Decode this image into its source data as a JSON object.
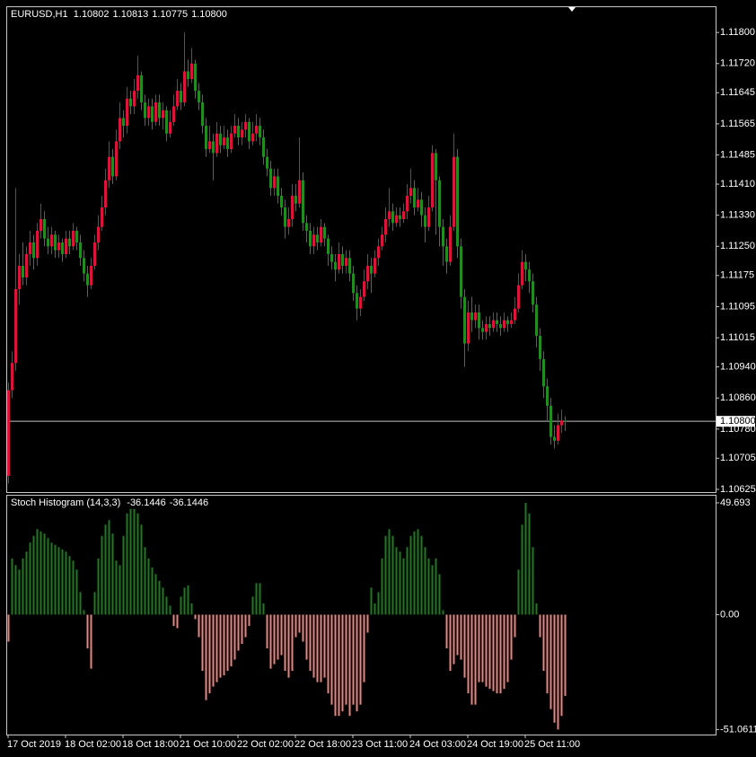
{
  "chart_data": [
    {
      "type": "candlestick",
      "title": "EURUSD,H1",
      "title_values": [
        "1.10802",
        "1.10813",
        "1.10775",
        "1.10800"
      ],
      "up_color": "#dc143c",
      "down_color": "#228b22",
      "ylim": [
        1.10618,
        1.11865
      ],
      "yticks": [
        {
          "value": 1.118,
          "label": "1.11800"
        },
        {
          "value": 1.1172,
          "label": "1.11720"
        },
        {
          "value": 1.11645,
          "label": "1.11645"
        },
        {
          "value": 1.11565,
          "label": "1.11565"
        },
        {
          "value": 1.11485,
          "label": "1.11485"
        },
        {
          "value": 1.1141,
          "label": "1.11410"
        },
        {
          "value": 1.1133,
          "label": "1.11330"
        },
        {
          "value": 1.1125,
          "label": "1.11250"
        },
        {
          "value": 1.11175,
          "label": "1.11175"
        },
        {
          "value": 1.11095,
          "label": "1.11095"
        },
        {
          "value": 1.11015,
          "label": "1.11015"
        },
        {
          "value": 1.1094,
          "label": "1.10940"
        },
        {
          "value": 1.1086,
          "label": "1.10860"
        },
        {
          "value": 1.1078,
          "label": "1.10780"
        },
        {
          "value": 1.10705,
          "label": "1.10705"
        },
        {
          "value": 1.10625,
          "label": "1.10625"
        }
      ],
      "price_line": {
        "value": 1.108,
        "label": "1.10800"
      },
      "open": [
        1.1066,
        1.1088,
        1.1095,
        1.1114,
        1.112,
        1.1117,
        1.1123,
        1.1126,
        1.1122,
        1.1129,
        1.1132,
        1.1127,
        1.1125,
        1.1128,
        1.1124,
        1.1126,
        1.1123,
        1.1127,
        1.1125,
        1.1129,
        1.1126,
        1.1122,
        1.1118,
        1.1115,
        1.112,
        1.1126,
        1.113,
        1.1135,
        1.1142,
        1.1148,
        1.1143,
        1.1152,
        1.1158,
        1.1156,
        1.1163,
        1.1161,
        1.1165,
        1.1169,
        1.1162,
        1.1158,
        1.1161,
        1.1157,
        1.1162,
        1.1158,
        1.116,
        1.1154,
        1.1157,
        1.1161,
        1.1165,
        1.1162,
        1.117,
        1.1168,
        1.1172,
        1.1165,
        1.1162,
        1.1156,
        1.115,
        1.1152,
        1.1149,
        1.1154,
        1.1151,
        1.1153,
        1.115,
        1.1154,
        1.1156,
        1.1153,
        1.1155,
        1.1157,
        1.1152,
        1.1154,
        1.1156,
        1.1153,
        1.1148,
        1.1145,
        1.114,
        1.1143,
        1.1138,
        1.1135,
        1.113,
        1.1132,
        1.1138,
        1.1136,
        1.1142,
        1.1131,
        1.1129,
        1.1125,
        1.1128,
        1.1126,
        1.113,
        1.1127,
        1.1123,
        1.1121,
        1.1119,
        1.1123,
        1.112,
        1.1122,
        1.1118,
        1.1113,
        1.1109,
        1.1112,
        1.1116,
        1.112,
        1.1118,
        1.1122,
        1.1125,
        1.1128,
        1.1132,
        1.1134,
        1.1131,
        1.1133,
        1.1132,
        1.1134,
        1.1138,
        1.114,
        1.1135,
        1.1137,
        1.1133,
        1.113,
        1.1135,
        1.1149,
        1.1142,
        1.113,
        1.1125,
        1.1121,
        1.113,
        1.1148,
        1.1125,
        1.1112,
        1.11,
        1.1108,
        1.1106,
        1.1108,
        1.1104,
        1.1103,
        1.1105,
        1.1104,
        1.1106,
        1.1105,
        1.1104,
        1.1106,
        1.1105,
        1.1106,
        1.1109,
        1.1115,
        1.1121,
        1.1119,
        1.1116,
        1.111,
        1.1102,
        1.1096,
        1.1089,
        1.1084,
        1.1076,
        1.1075,
        1.1079,
        1.10802
      ],
      "high": [
        1.109,
        1.1098,
        1.114,
        1.1123,
        1.1126,
        1.1125,
        1.1129,
        1.1128,
        1.1131,
        1.1136,
        1.1134,
        1.113,
        1.113,
        1.1129,
        1.1128,
        1.1127,
        1.1129,
        1.1129,
        1.1131,
        1.113,
        1.1128,
        1.1124,
        1.112,
        1.1122,
        1.1128,
        1.1133,
        1.1138,
        1.1145,
        1.1152,
        1.115,
        1.1155,
        1.1162,
        1.116,
        1.1166,
        1.1165,
        1.1168,
        1.1174,
        1.117,
        1.1164,
        1.1163,
        1.1163,
        1.1164,
        1.1164,
        1.1162,
        1.1161,
        1.116,
        1.1164,
        1.1168,
        1.1167,
        1.118,
        1.1173,
        1.1176,
        1.1173,
        1.1167,
        1.1164,
        1.1158,
        1.1156,
        1.1154,
        1.1157,
        1.1156,
        1.1156,
        1.1155,
        1.1156,
        1.1159,
        1.1158,
        1.1157,
        1.1159,
        1.1158,
        1.1157,
        1.1159,
        1.1158,
        1.1155,
        1.115,
        1.1147,
        1.1145,
        1.1145,
        1.114,
        1.1137,
        1.1135,
        1.1141,
        1.1141,
        1.1153,
        1.1144,
        1.1133,
        1.1131,
        1.113,
        1.113,
        1.1132,
        1.1131,
        1.1128,
        1.1125,
        1.1123,
        1.1126,
        1.1125,
        1.1124,
        1.1124,
        1.112,
        1.1115,
        1.1114,
        1.1119,
        1.1123,
        1.1122,
        1.1124,
        1.1127,
        1.113,
        1.1135,
        1.114,
        1.1136,
        1.1135,
        1.1135,
        1.1136,
        1.1141,
        1.1145,
        1.1142,
        1.114,
        1.1139,
        1.1135,
        1.1138,
        1.1151,
        1.115,
        1.1143,
        1.1132,
        1.1127,
        1.1133,
        1.1154,
        1.115,
        1.1127,
        1.1114,
        1.1111,
        1.1112,
        1.111,
        1.111,
        1.1106,
        1.1107,
        1.1107,
        1.1108,
        1.1108,
        1.1107,
        1.1108,
        1.1107,
        1.1108,
        1.1112,
        1.1118,
        1.1124,
        1.1123,
        1.1121,
        1.1118,
        1.1112,
        1.1104,
        1.1098,
        1.1091,
        1.1086,
        1.1079,
        1.1082,
        1.1083,
        1.10813
      ],
      "low": [
        1.1064,
        1.1086,
        1.1093,
        1.111,
        1.1115,
        1.1115,
        1.112,
        1.1119,
        1.112,
        1.1127,
        1.1125,
        1.1123,
        1.1123,
        1.1122,
        1.1122,
        1.1121,
        1.1122,
        1.1123,
        1.1124,
        1.1124,
        1.112,
        1.1116,
        1.1112,
        1.1114,
        1.1119,
        1.1124,
        1.1129,
        1.1133,
        1.114,
        1.1141,
        1.1142,
        1.115,
        1.1153,
        1.1154,
        1.1159,
        1.1159,
        1.1163,
        1.116,
        1.1156,
        1.1156,
        1.1155,
        1.1156,
        1.1156,
        1.1155,
        1.1152,
        1.1153,
        1.1156,
        1.116,
        1.116,
        1.1161,
        1.1166,
        1.1167,
        1.1163,
        1.116,
        1.1154,
        1.1148,
        1.1149,
        1.1142,
        1.1148,
        1.1149,
        1.115,
        1.1148,
        1.1149,
        1.1153,
        1.1151,
        1.1151,
        1.1153,
        1.115,
        1.1151,
        1.1152,
        1.1151,
        1.1146,
        1.1143,
        1.1138,
        1.1138,
        1.1136,
        1.1133,
        1.1127,
        1.1128,
        1.113,
        1.1134,
        1.1135,
        1.1129,
        1.1126,
        1.1123,
        1.1123,
        1.1124,
        1.1125,
        1.1125,
        1.112,
        1.1119,
        1.1116,
        1.1118,
        1.1118,
        1.1118,
        1.1116,
        1.1111,
        1.1106,
        1.1107,
        1.1111,
        1.1114,
        1.1113,
        1.1117,
        1.112,
        1.1124,
        1.1126,
        1.113,
        1.1129,
        1.113,
        1.113,
        1.1131,
        1.1132,
        1.1136,
        1.1133,
        1.1134,
        1.113,
        1.1126,
        1.1129,
        1.1134,
        1.1128,
        1.1125,
        1.112,
        1.1118,
        1.112,
        1.1129,
        1.1122,
        1.1109,
        1.1094,
        1.1098,
        1.1103,
        1.1104,
        1.1101,
        1.1101,
        1.1101,
        1.1102,
        1.1103,
        1.1103,
        1.1102,
        1.1103,
        1.1103,
        1.1104,
        1.1105,
        1.1108,
        1.1114,
        1.1116,
        1.1113,
        1.1108,
        1.1099,
        1.1093,
        1.1086,
        1.108,
        1.1074,
        1.1073,
        1.1074,
        1.1077,
        1.10775
      ],
      "close": [
        1.1088,
        1.1095,
        1.1114,
        1.112,
        1.1117,
        1.1123,
        1.1126,
        1.1122,
        1.1129,
        1.1132,
        1.1127,
        1.1125,
        1.1128,
        1.1124,
        1.1126,
        1.1123,
        1.1127,
        1.1125,
        1.1129,
        1.1126,
        1.1122,
        1.1118,
        1.1115,
        1.112,
        1.1126,
        1.113,
        1.1135,
        1.1142,
        1.1148,
        1.1143,
        1.1152,
        1.1158,
        1.1156,
        1.1163,
        1.1161,
        1.1165,
        1.1169,
        1.1162,
        1.1158,
        1.1161,
        1.1157,
        1.1162,
        1.1158,
        1.116,
        1.1154,
        1.1157,
        1.1161,
        1.1165,
        1.1162,
        1.117,
        1.1168,
        1.1172,
        1.1165,
        1.1162,
        1.1156,
        1.115,
        1.1152,
        1.1149,
        1.1154,
        1.1151,
        1.1153,
        1.115,
        1.1154,
        1.1156,
        1.1153,
        1.1155,
        1.1157,
        1.1152,
        1.1154,
        1.1156,
        1.1153,
        1.1148,
        1.1145,
        1.114,
        1.1143,
        1.1138,
        1.1135,
        1.113,
        1.1132,
        1.1138,
        1.1136,
        1.1142,
        1.1131,
        1.1129,
        1.1125,
        1.1128,
        1.1126,
        1.113,
        1.1127,
        1.1123,
        1.1121,
        1.1119,
        1.1123,
        1.112,
        1.1122,
        1.1118,
        1.1113,
        1.1109,
        1.1112,
        1.1116,
        1.112,
        1.1118,
        1.1122,
        1.1125,
        1.1128,
        1.1132,
        1.1134,
        1.1131,
        1.1133,
        1.1132,
        1.1134,
        1.1138,
        1.114,
        1.1135,
        1.1137,
        1.1133,
        1.113,
        1.1135,
        1.1149,
        1.1142,
        1.113,
        1.1125,
        1.1121,
        1.113,
        1.1148,
        1.1125,
        1.1112,
        1.11,
        1.1108,
        1.1106,
        1.1108,
        1.1104,
        1.1103,
        1.1105,
        1.1104,
        1.1106,
        1.1105,
        1.1104,
        1.1106,
        1.1105,
        1.1106,
        1.1109,
        1.1115,
        1.1121,
        1.1119,
        1.1116,
        1.111,
        1.1102,
        1.1096,
        1.1089,
        1.1084,
        1.1076,
        1.1075,
        1.1079,
        1.10802,
        1.108
      ]
    },
    {
      "type": "bar",
      "title": "Stoch Histogram (14,3,3)",
      "title_values": [
        -36.1446,
        -36.1446
      ],
      "positive_color": "#1f7a1f",
      "negative_color": "#e8857c",
      "ylim": [
        -53.3,
        52.87
      ],
      "yticks": [
        49.693,
        {
          "value": 0,
          "label": "0.00"
        },
        -51.0611
      ],
      "categories": [
        "17 Oct 2019",
        null,
        null,
        null,
        null,
        null,
        null,
        null,
        null,
        null,
        null,
        null,
        null,
        null,
        null,
        null,
        "18 Oct 02:00",
        null,
        null,
        null,
        null,
        null,
        null,
        null,
        null,
        null,
        null,
        null,
        null,
        null,
        null,
        null,
        "18 Oct 18:00",
        null,
        null,
        null,
        null,
        null,
        null,
        null,
        null,
        null,
        null,
        null,
        null,
        null,
        null,
        null,
        "21 Oct 10:00",
        null,
        null,
        null,
        null,
        null,
        null,
        null,
        null,
        null,
        null,
        null,
        null,
        null,
        null,
        null,
        "22 Oct 02:00",
        null,
        null,
        null,
        null,
        null,
        null,
        null,
        null,
        null,
        null,
        null,
        null,
        null,
        null,
        null,
        "22 Oct 18:00",
        null,
        null,
        null,
        null,
        null,
        null,
        null,
        null,
        null,
        null,
        null,
        null,
        null,
        null,
        null,
        "23 Oct 11:00",
        null,
        null,
        null,
        null,
        null,
        null,
        null,
        null,
        null,
        null,
        null,
        null,
        null,
        null,
        null,
        "24 Oct 03:00",
        null,
        null,
        null,
        null,
        null,
        null,
        null,
        null,
        null,
        null,
        null,
        null,
        null,
        null,
        null,
        "24 Oct 19:00",
        null,
        null,
        null,
        null,
        null,
        null,
        null,
        null,
        null,
        null,
        null,
        null,
        null,
        null,
        null,
        "25 Oct 11:00",
        null,
        null,
        null,
        null,
        null,
        null,
        null,
        null,
        null,
        null,
        null
      ],
      "values": [
        -12,
        25,
        22,
        20,
        25,
        28,
        32,
        35,
        38,
        37,
        36,
        34,
        32,
        31,
        30,
        29,
        28,
        26,
        24,
        20,
        10,
        2,
        -15,
        -24,
        10,
        25,
        35,
        40,
        42,
        36,
        24,
        22,
        35,
        45,
        47,
        47,
        45,
        40,
        30,
        25,
        21,
        18,
        15,
        12,
        8,
        4,
        -5,
        -6,
        8,
        12,
        13,
        5,
        -2,
        -10,
        -25,
        -38,
        -35,
        -32,
        -30,
        -28,
        -27,
        -25,
        -23,
        -20,
        -16,
        -13,
        -10,
        -5,
        8,
        14,
        14,
        5,
        -15,
        -24,
        -22,
        -20,
        -18,
        -25,
        -28,
        -25,
        -10,
        -8,
        -12,
        -20,
        -25,
        -28,
        -30,
        -30,
        -28,
        -35,
        -40,
        -45,
        -45,
        -43,
        -40,
        -45,
        -40,
        -43,
        -40,
        -30,
        -8,
        12,
        5,
        10,
        25,
        35,
        38,
        35,
        30,
        28,
        25,
        30,
        35,
        37,
        38,
        35,
        30,
        25,
        22,
        25,
        18,
        2,
        -15,
        -25,
        -22,
        -18,
        -20,
        -28,
        -35,
        -40,
        -40,
        -30,
        -30,
        -32,
        -33,
        -34,
        -35,
        -35,
        -33,
        -30,
        -20,
        -10,
        20,
        40,
        49.693,
        45,
        30,
        5,
        -10,
        -25,
        -35,
        -42,
        -48,
        -51.0611,
        -45,
        -36.1446
      ]
    }
  ]
}
